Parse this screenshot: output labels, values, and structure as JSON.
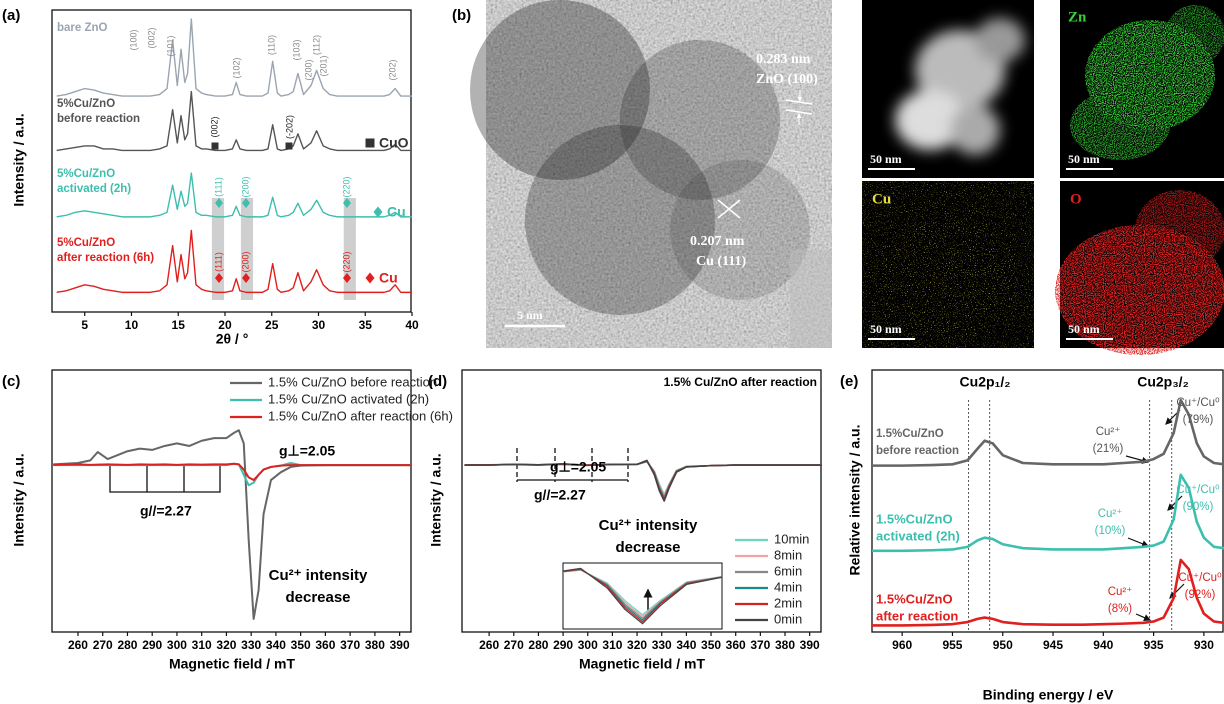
{
  "panel_labels": [
    "(a)",
    "(b)",
    "(c)",
    "(d)",
    "(e)"
  ],
  "chart_data": [
    {
      "type": "line",
      "x_label": "2θ / °",
      "y_label": "Intensity / a.u.",
      "xlim": [
        1.5,
        40
      ],
      "xticks": [
        5,
        10,
        15,
        20,
        25,
        30,
        35,
        40
      ],
      "ylim": [
        0,
        10
      ],
      "x": [
        2,
        3,
        4,
        5,
        6,
        7,
        8,
        9,
        10,
        11,
        12,
        13,
        13.8,
        14.4,
        14.9,
        15.3,
        15.7,
        16.0,
        16.4,
        16.9,
        17.5,
        18,
        19,
        20,
        20.8,
        21.2,
        21.6,
        22.3,
        23,
        24,
        24.6,
        25.1,
        25.6,
        26,
        26.8,
        27.3,
        27.8,
        28.4,
        29.2,
        29.8,
        30.5,
        31.2,
        32,
        33,
        34,
        35,
        36,
        37,
        37.6,
        38.2,
        38.8,
        39.4,
        40
      ],
      "series": [
        {
          "label": [
            "bare ZnO"
          ],
          "color": "#9aa5b1",
          "values": [
            7.15,
            7.2,
            7.3,
            7.4,
            7.35,
            7.25,
            7.2,
            7.15,
            7.15,
            7.15,
            7.15,
            7.2,
            7.4,
            9.0,
            7.5,
            8.7,
            7.6,
            7.9,
            9.7,
            7.4,
            7.25,
            7.2,
            7.15,
            7.15,
            7.2,
            7.6,
            7.2,
            7.15,
            7.15,
            7.15,
            7.25,
            8.3,
            7.25,
            7.15,
            7.2,
            7.3,
            7.9,
            7.2,
            7.5,
            8.0,
            7.4,
            7.2,
            7.15,
            7.15,
            7.15,
            7.15,
            7.15,
            7.15,
            7.2,
            7.4,
            7.15,
            7.15,
            7.15
          ]
        },
        {
          "label": [
            "5%Cu/ZnO",
            "before reaction"
          ],
          "color": "#555555",
          "values": [
            5.35,
            5.4,
            5.45,
            5.5,
            5.5,
            5.4,
            5.4,
            5.35,
            5.35,
            5.35,
            5.35,
            5.4,
            5.5,
            6.7,
            5.6,
            6.5,
            5.7,
            5.9,
            7.3,
            5.5,
            5.4,
            5.4,
            5.35,
            5.35,
            5.4,
            5.7,
            5.4,
            5.35,
            5.35,
            5.35,
            5.4,
            6.2,
            5.4,
            5.35,
            5.4,
            5.5,
            5.9,
            5.4,
            5.6,
            6.0,
            5.5,
            5.4,
            5.35,
            5.35,
            5.35,
            5.35,
            5.35,
            5.35,
            5.4,
            5.55,
            5.35,
            5.35,
            5.35
          ]
        },
        {
          "label": [
            "5%Cu/ZnO",
            "activated (2h)"
          ],
          "color": "#3cbfae",
          "values": [
            3.15,
            3.2,
            3.3,
            3.35,
            3.3,
            3.25,
            3.2,
            3.15,
            3.15,
            3.15,
            3.15,
            3.2,
            3.3,
            4.2,
            3.4,
            4.0,
            3.5,
            3.6,
            4.6,
            3.3,
            3.2,
            3.2,
            3.15,
            3.15,
            3.2,
            3.5,
            3.2,
            3.15,
            3.15,
            3.15,
            3.2,
            3.8,
            3.2,
            3.15,
            3.2,
            3.3,
            3.6,
            3.2,
            3.4,
            3.7,
            3.3,
            3.2,
            3.15,
            3.15,
            3.15,
            3.15,
            3.15,
            3.15,
            3.2,
            3.3,
            3.15,
            3.15,
            3.15
          ]
        },
        {
          "label": [
            "5%Cu/ZnO",
            "after reaction (6h)"
          ],
          "color": "#e0201e",
          "values": [
            0.65,
            0.7,
            0.8,
            0.9,
            0.85,
            0.75,
            0.7,
            0.65,
            0.65,
            0.65,
            0.65,
            0.7,
            0.9,
            2.2,
            1.0,
            1.9,
            1.1,
            1.3,
            2.7,
            0.9,
            0.75,
            0.7,
            0.65,
            0.65,
            0.7,
            1.1,
            0.7,
            0.65,
            0.65,
            0.65,
            0.75,
            1.6,
            0.75,
            0.65,
            0.7,
            0.8,
            1.3,
            0.7,
            1.0,
            1.4,
            0.9,
            0.7,
            0.65,
            0.65,
            0.65,
            0.65,
            0.65,
            0.65,
            0.7,
            0.9,
            0.65,
            0.65,
            0.65
          ]
        }
      ],
      "bands": [
        [
          18.6,
          19.9
        ],
        [
          21.7,
          23.0
        ],
        [
          32.7,
          34.0
        ]
      ],
      "reflections": [
        [
          "(100)",
          "(002)",
          "(101)",
          "(102)",
          "(110)",
          "(103)",
          "(200)",
          "(112)",
          "(201)",
          "(202)"
        ],
        [
          "(002)",
          "(-202)"
        ],
        [
          "(111)",
          "(200)",
          "(220)"
        ],
        [
          "(111)",
          "(200)",
          "(220)"
        ]
      ],
      "phase_legend": [
        "CuO",
        "Cu",
        "Cu"
      ]
    },
    {
      "type": "line",
      "x_label": "Magnetic field / mT",
      "y_label": "Intensity / a.u.",
      "xlim": [
        249.5,
        395
      ],
      "xticks": [
        260,
        270,
        280,
        290,
        300,
        310,
        320,
        330,
        340,
        350,
        360,
        370,
        380,
        390
      ],
      "ylim": [
        0,
        10
      ],
      "x": [
        250,
        260,
        265,
        268,
        272,
        280,
        285,
        290,
        295,
        300,
        305,
        310,
        315,
        320,
        323,
        325,
        327,
        329,
        331,
        333,
        335,
        338,
        342,
        346,
        350,
        360,
        370,
        380,
        390,
        395
      ],
      "series": [
        {
          "name": "1.5% Cu/ZnO before reaction",
          "color": "#666666",
          "values": [
            6.4,
            6.45,
            6.55,
            6.87,
            6.6,
            6.9,
            7.0,
            6.95,
            7.1,
            7.2,
            7.1,
            7.3,
            7.4,
            7.4,
            7.6,
            7.7,
            7.2,
            3.5,
            0.5,
            1.6,
            4.5,
            5.8,
            6.1,
            6.3,
            6.35,
            6.37,
            6.37,
            6.37,
            6.37,
            6.37
          ]
        },
        {
          "name": "1.5% Cu/ZnO activated (2h)",
          "color": "#3cbfae",
          "values": [
            6.37,
            6.37,
            6.37,
            6.37,
            6.37,
            6.37,
            6.37,
            6.37,
            6.37,
            6.37,
            6.37,
            6.37,
            6.37,
            6.37,
            6.42,
            6.4,
            6.0,
            5.6,
            5.7,
            6.0,
            6.2,
            6.3,
            6.35,
            6.45,
            6.37,
            6.37,
            6.37,
            6.37,
            6.37,
            6.37
          ]
        },
        {
          "name": "1.5% Cu/ZnO after reaction (6h)",
          "color": "#e0201e",
          "values": [
            6.38,
            6.4,
            6.38,
            6.39,
            6.4,
            6.38,
            6.4,
            6.39,
            6.4,
            6.38,
            6.4,
            6.39,
            6.4,
            6.4,
            6.42,
            6.4,
            6.2,
            5.9,
            5.8,
            6.0,
            6.2,
            6.3,
            6.35,
            6.37,
            6.37,
            6.37,
            6.37,
            6.37,
            6.37,
            6.37
          ]
        }
      ],
      "g_perp": "g⊥=2.05",
      "g_par": "g//=2.27",
      "note": [
        "Cu²⁺ intensity",
        "decrease"
      ]
    },
    {
      "type": "line",
      "title": "1.5% Cu/ZnO after reaction",
      "x_label": "Magnetic field / mT",
      "y_label": "Intensity / a.u.",
      "xlim": [
        249,
        395
      ],
      "xticks": [
        260,
        270,
        280,
        290,
        300,
        310,
        320,
        330,
        340,
        350,
        360,
        370,
        380,
        390
      ],
      "ylim": [
        0,
        10
      ],
      "x": [
        250,
        260,
        270,
        280,
        290,
        300,
        310,
        320,
        324,
        327,
        329,
        331,
        333,
        336,
        340,
        350,
        360,
        380,
        395
      ],
      "series": [
        {
          "name": "10min",
          "color": "#6fd6c6",
          "values": [
            6.37,
            6.37,
            6.39,
            6.38,
            6.41,
            6.36,
            6.4,
            6.4,
            6.5,
            6.14,
            5.65,
            5.25,
            5.65,
            6.17,
            6.32,
            6.35,
            6.37,
            6.37,
            6.37
          ]
        },
        {
          "name": "8min",
          "color": "#f4a3a3",
          "values": [
            6.37,
            6.37,
            6.4,
            6.38,
            6.4,
            6.37,
            6.4,
            6.4,
            6.5,
            6.12,
            5.6,
            5.2,
            5.62,
            6.16,
            6.32,
            6.35,
            6.37,
            6.37,
            6.37
          ]
        },
        {
          "name": "6min",
          "color": "#888888",
          "values": [
            6.37,
            6.38,
            6.39,
            6.37,
            6.41,
            6.37,
            6.39,
            6.4,
            6.51,
            6.1,
            5.55,
            5.15,
            5.6,
            6.15,
            6.31,
            6.35,
            6.37,
            6.37,
            6.37
          ]
        },
        {
          "name": "4min",
          "color": "#1a8a8a",
          "values": [
            6.37,
            6.37,
            6.4,
            6.37,
            6.41,
            6.36,
            6.4,
            6.4,
            6.52,
            6.08,
            5.5,
            5.1,
            5.58,
            6.13,
            6.31,
            6.35,
            6.37,
            6.37,
            6.37
          ]
        },
        {
          "name": "2min",
          "color": "#d62020",
          "values": [
            6.37,
            6.38,
            6.39,
            6.38,
            6.4,
            6.37,
            6.39,
            6.4,
            6.53,
            6.05,
            5.45,
            5.05,
            5.55,
            6.12,
            6.3,
            6.35,
            6.37,
            6.37,
            6.37
          ]
        },
        {
          "name": "0min",
          "color": "#444444",
          "values": [
            6.37,
            6.37,
            6.4,
            6.38,
            6.42,
            6.36,
            6.4,
            6.4,
            6.55,
            6.0,
            5.4,
            5.0,
            5.5,
            6.1,
            6.3,
            6.35,
            6.37,
            6.37,
            6.37
          ]
        }
      ],
      "g_perp": "g⊥=2.05",
      "g_par": "g//=2.27",
      "note": [
        "Cu²⁺ intensity",
        "decrease"
      ]
    },
    {
      "type": "line",
      "x_label": "Binding energy / eV",
      "y_label": "Relative intensity / a.u.",
      "xlim": [
        963,
        928
      ],
      "xticks": [
        960,
        955,
        950,
        945,
        940,
        935,
        930
      ],
      "ylim": [
        0,
        10
      ],
      "x": [
        963,
        960,
        957,
        955,
        953.5,
        952.5,
        951.8,
        951,
        950,
        948,
        945,
        942,
        940,
        938,
        936,
        935,
        934,
        933,
        932.3,
        931.5,
        930.7,
        930,
        929,
        928
      ],
      "series": [
        {
          "label": [
            "1.5%Cu/ZnO",
            "before reaction"
          ],
          "color": "#666666",
          "values": [
            6.35,
            6.35,
            6.37,
            6.4,
            6.55,
            7.0,
            7.3,
            7.2,
            6.75,
            6.45,
            6.4,
            6.4,
            6.4,
            6.45,
            6.5,
            6.6,
            6.8,
            7.6,
            8.85,
            8.3,
            7.2,
            6.7,
            6.45,
            6.4
          ],
          "components": [
            [
              "Cu²⁺",
              "(21%)"
            ],
            [
              "Cu⁺/Cu⁰",
              "(79%)"
            ]
          ]
        },
        {
          "label": [
            "1.5%Cu/ZnO",
            "activated (2h)"
          ],
          "color": "#3cbfae",
          "values": [
            3.1,
            3.1,
            3.12,
            3.15,
            3.25,
            3.5,
            3.6,
            3.55,
            3.35,
            3.2,
            3.15,
            3.15,
            3.15,
            3.2,
            3.25,
            3.3,
            3.45,
            4.3,
            6.0,
            5.5,
            4.2,
            3.6,
            3.25,
            3.2
          ],
          "components": [
            [
              "Cu²⁺",
              "(10%)"
            ],
            [
              "Cu⁺/Cu⁰",
              "(90%)"
            ]
          ]
        },
        {
          "label": [
            "1.5%Cu/ZnO",
            "after reaction"
          ],
          "color": "#e0201e",
          "values": [
            0.25,
            0.25,
            0.27,
            0.3,
            0.38,
            0.5,
            0.55,
            0.5,
            0.38,
            0.3,
            0.28,
            0.28,
            0.3,
            0.32,
            0.35,
            0.4,
            0.55,
            1.3,
            2.75,
            2.4,
            1.3,
            0.7,
            0.4,
            0.35
          ],
          "components": [
            [
              "Cu²⁺",
              "(8%)"
            ],
            [
              "Cu⁺/Cu⁰",
              "(92%)"
            ]
          ]
        }
      ],
      "peak_labels": [
        "Cu2p₁/₂",
        "Cu2p₃/₂"
      ],
      "reference_lines": [
        953.4,
        951.3,
        935.4,
        933.2
      ]
    }
  ],
  "figure_b": {
    "tem": {
      "lattice": [
        [
          "0.283 nm",
          "ZnO (100)"
        ],
        [
          "0.207 nm",
          "Cu (111)"
        ]
      ],
      "scale": "5 nm"
    },
    "maps": [
      {
        "scale": "50 nm"
      },
      {
        "element": "Zn",
        "scale": "50 nm"
      },
      {
        "element": "Cu",
        "scale": "50 nm"
      },
      {
        "element": "O",
        "scale": "50 nm"
      }
    ]
  }
}
